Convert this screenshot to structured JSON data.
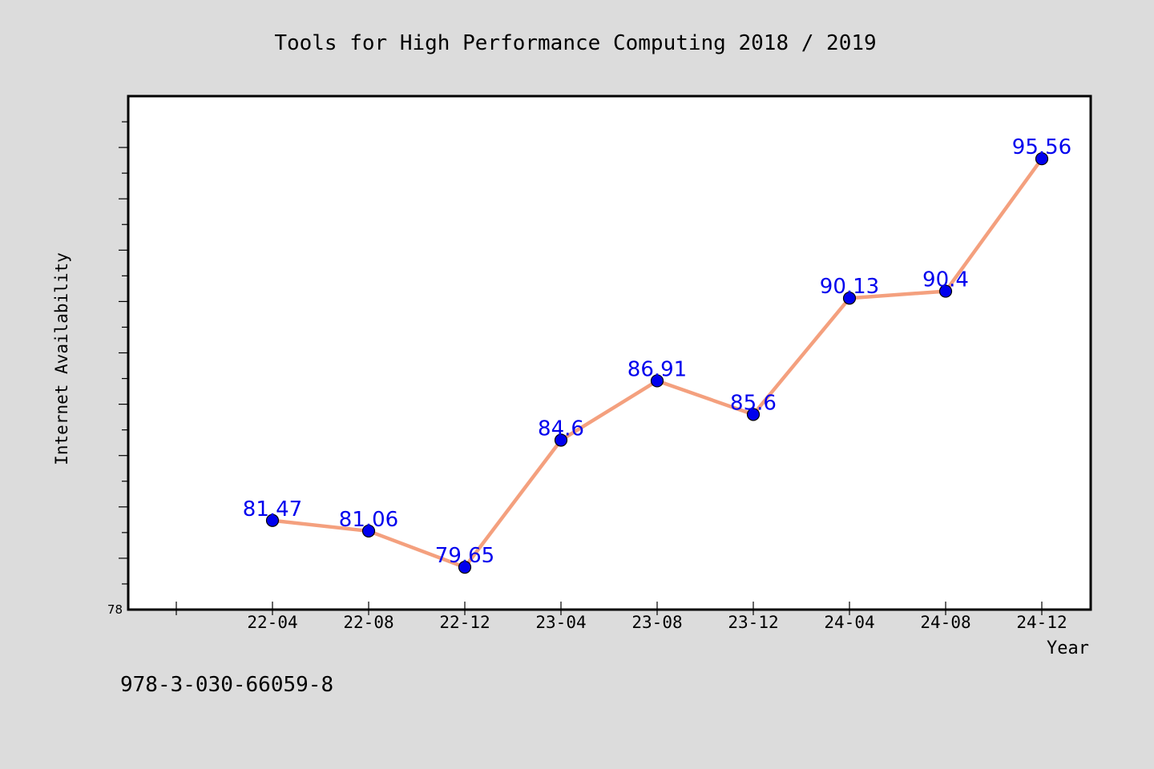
{
  "chart_data": {
    "type": "line",
    "title": "Tools for High Performance Computing 2018 / 2019",
    "xlabel": "Year",
    "ylabel": "Internet Availability",
    "categories": [
      "22-04",
      "22-08",
      "22-12",
      "23-04",
      "23-08",
      "23-12",
      "24-04",
      "24-08",
      "24-12"
    ],
    "series": [
      {
        "values": [
          81.47,
          81.06,
          79.65,
          84.6,
          86.91,
          85.6,
          90.13,
          90.4,
          95.56
        ],
        "data_labels": [
          "81.47",
          "81.06",
          "79.65",
          "84.6",
          "86.91",
          "85.6",
          "90.13",
          "90.4",
          "95.56"
        ]
      }
    ],
    "ylim": [
      78,
      98
    ],
    "y_tick_labels": [
      "78"
    ],
    "grid": false,
    "legend": "none",
    "footnote": "978-3-030-66059-8",
    "colors": {
      "background": "#dcdcdc",
      "plot_background": "#ffffff",
      "frame": "#000000",
      "line": "#f4a07e",
      "marker": "#0000ee",
      "label": "#0000ee",
      "text": "#000000"
    }
  }
}
